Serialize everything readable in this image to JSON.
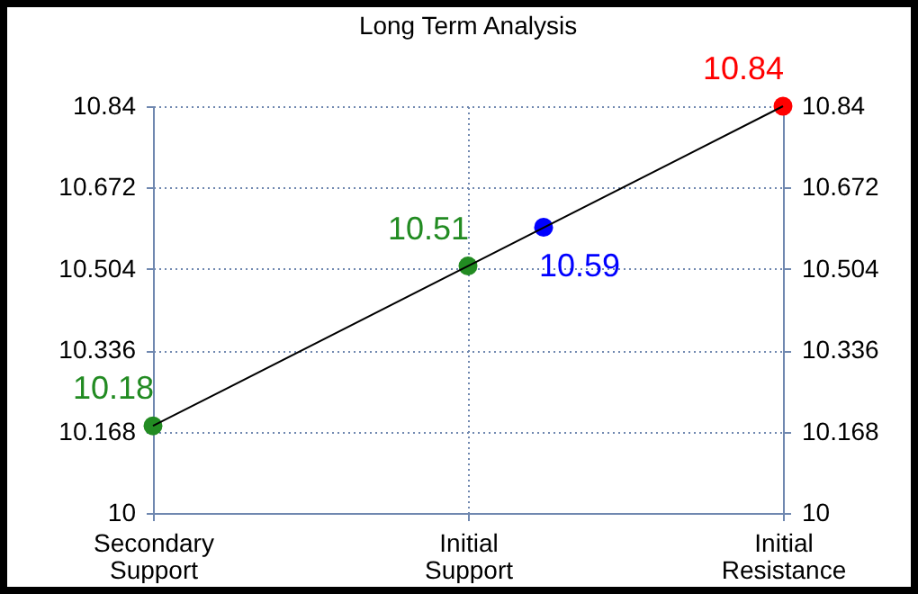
{
  "chart_data": {
    "type": "line",
    "title": "Long Term Analysis",
    "categories": [
      "Secondary Support",
      "Initial Support",
      "Initial Resistance"
    ],
    "ylim": [
      10,
      10.84
    ],
    "yticks": [
      10,
      10.168,
      10.336,
      10.504,
      10.672,
      10.84
    ],
    "y2lim": [
      10,
      10.84
    ],
    "y2ticks": [
      10,
      10.168,
      10.336,
      10.504,
      10.672,
      10.84
    ],
    "grid": true,
    "marker": "circle",
    "data_labels": true,
    "series": [
      {
        "type": "line",
        "values": [
          10.18,
          10.51,
          10.84
        ],
        "color": "#000000",
        "colors": [
          "#228b22",
          "#228b22",
          "#ff0000"
        ]
      },
      {
        "type": "scatter",
        "values": [
          null,
          10.59,
          null
        ],
        "color": "#0000ff"
      }
    ]
  }
}
